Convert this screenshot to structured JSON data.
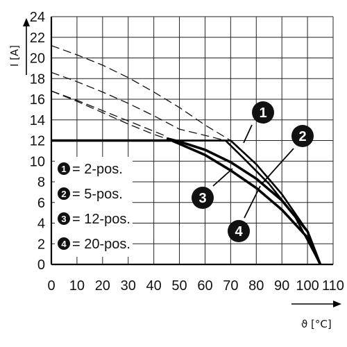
{
  "chart_data": {
    "type": "line",
    "title": "",
    "xlabel": "ϑ [°C]",
    "ylabel": "I [A]",
    "xlim": [
      0,
      110
    ],
    "ylim": [
      0,
      24
    ],
    "x_ticks": [
      "0",
      "10",
      "20",
      "30",
      "40",
      "50",
      "60",
      "70",
      "80",
      "90",
      "100",
      "110"
    ],
    "y_ticks": [
      "0",
      "2",
      "4",
      "6",
      "8",
      "10",
      "12",
      "14",
      "16",
      "18",
      "20",
      "22",
      "24"
    ],
    "grid": true,
    "legend_position": "bottom-left",
    "legend": [
      {
        "badge": "1",
        "label": "= 2-pos."
      },
      {
        "badge": "2",
        "label": "= 5-pos."
      },
      {
        "badge": "3",
        "label": "= 12-pos."
      },
      {
        "badge": "4",
        "label": "= 20-pos."
      }
    ],
    "series": [
      {
        "badge": "1",
        "dashed_x": [
          0,
          10,
          20,
          30,
          40,
          50,
          60,
          70
        ],
        "dashed_y": [
          21.2,
          20.3,
          19.3,
          18.1,
          16.7,
          15.2,
          13.5,
          12.0
        ],
        "solid_x": [
          0,
          70,
          80,
          90,
          100,
          105
        ],
        "solid_y": [
          12,
          12,
          9.7,
          6.8,
          3.2,
          0
        ]
      },
      {
        "badge": "2",
        "dashed_x": [
          0,
          10,
          20,
          30,
          40,
          50,
          60,
          68
        ],
        "dashed_y": [
          18.6,
          17.7,
          16.7,
          15.6,
          14.4,
          13.1,
          12.5,
          12.0
        ],
        "solid_x": [
          0,
          68,
          75,
          85,
          95,
          105
        ],
        "solid_y": [
          12,
          12,
          10.3,
          7.8,
          4.7,
          0
        ]
      },
      {
        "badge": "3",
        "dashed_x": [
          0,
          10,
          20,
          30,
          40,
          45
        ],
        "dashed_y": [
          16.8,
          15.9,
          14.9,
          13.9,
          12.9,
          12.4
        ],
        "solid_x": [
          45,
          50,
          60,
          70,
          80,
          90,
          100,
          105
        ],
        "solid_y": [
          12.2,
          11.9,
          11.1,
          9.9,
          8.3,
          6.2,
          3.2,
          0
        ]
      },
      {
        "badge": "4",
        "dashed_x": [
          0,
          10,
          20,
          30,
          40,
          47
        ],
        "dashed_y": [
          16.8,
          15.8,
          14.7,
          13.6,
          12.6,
          12.0
        ],
        "solid_x": [
          0,
          47,
          60,
          70,
          80,
          90,
          100,
          105
        ],
        "solid_y": [
          12,
          12,
          10.6,
          9.1,
          7.4,
          5.3,
          2.6,
          0
        ]
      }
    ],
    "callouts": [
      "1",
      "2",
      "3",
      "4"
    ]
  }
}
